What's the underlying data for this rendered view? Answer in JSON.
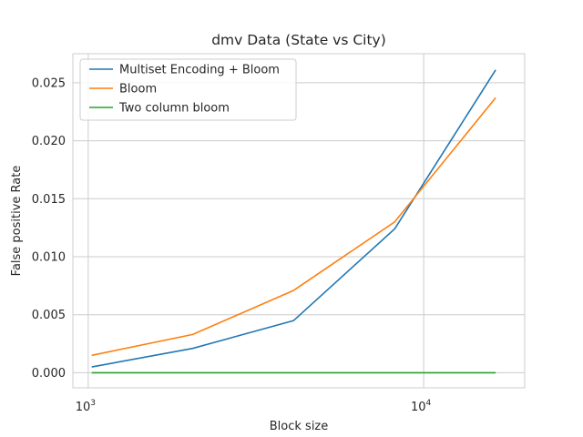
{
  "chart_data": {
    "type": "line",
    "title": "dmv Data (State vs City)",
    "xlabel": "Block size",
    "ylabel": "False positive Rate",
    "x_scale": "log",
    "xlim": [
      900,
      20000
    ],
    "ylim": [
      -0.0013,
      0.0275
    ],
    "x": [
      1024,
      2048,
      4096,
      8192,
      16384
    ],
    "x_ticks": [
      {
        "value": 1000,
        "base": "10",
        "exp": "3"
      },
      {
        "value": 10000,
        "base": "10",
        "exp": "4"
      }
    ],
    "y_ticks": [
      0.0,
      0.005,
      0.01,
      0.015,
      0.02,
      0.025
    ],
    "y_tick_labels": [
      "0.000",
      "0.005",
      "0.010",
      "0.015",
      "0.020",
      "0.025"
    ],
    "grid": true,
    "legend_position": "top-left",
    "series": [
      {
        "name": "Multiset Encoding + Bloom",
        "color": "#1f77b4",
        "values": [
          0.0005,
          0.0021,
          0.0045,
          0.0124,
          0.0261
        ]
      },
      {
        "name": "Bloom",
        "color": "#ff7f0e",
        "values": [
          0.0015,
          0.0033,
          0.0071,
          0.013,
          0.0237
        ]
      },
      {
        "name": "Two column bloom",
        "color": "#2ca02c",
        "values": [
          0.0,
          0.0,
          0.0,
          0.0,
          0.0
        ]
      }
    ]
  }
}
